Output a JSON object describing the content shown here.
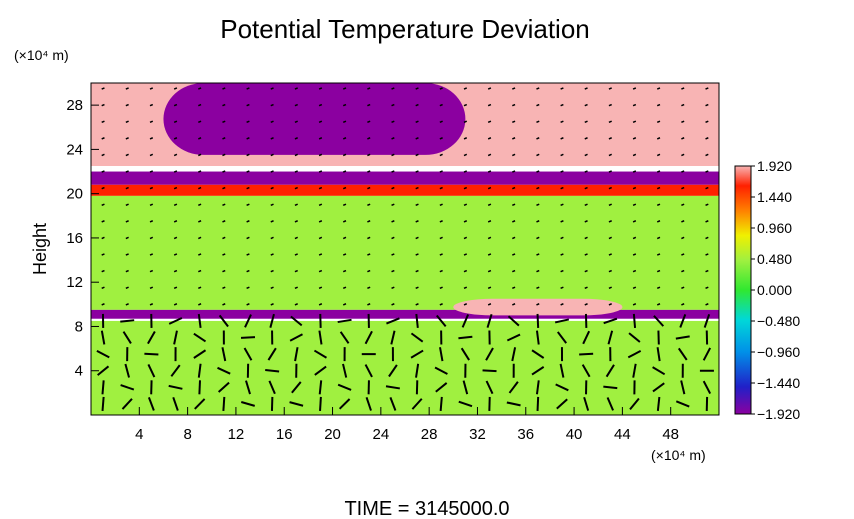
{
  "chart_data": {
    "type": "heatmap",
    "title": "Potential Temperature Deviation",
    "ylabel": "Height",
    "y_unit": "(×10⁴ m)",
    "x_unit": "(×10⁴ m)",
    "footer": "TIME = 3145000.0",
    "xlim": [
      0,
      52
    ],
    "ylim": [
      0,
      30
    ],
    "xticks": [
      4,
      8,
      12,
      16,
      20,
      24,
      28,
      32,
      36,
      40,
      44,
      48
    ],
    "xtick_labels": [
      "4",
      "8",
      "12",
      "16",
      "20",
      "24",
      "28",
      "32",
      "36",
      "40",
      "44",
      "48"
    ],
    "yticks": [
      4,
      8,
      12,
      16,
      20,
      24,
      28
    ],
    "ytick_labels": [
      "4",
      "8",
      "12",
      "16",
      "20",
      "24",
      "28"
    ],
    "colorbar": {
      "range": [
        -1.92,
        1.92
      ],
      "ticks": [
        1.92,
        1.44,
        0.96,
        0.48,
        0.0,
        -0.48,
        -0.96,
        -1.44,
        -1.92
      ],
      "tick_labels": [
        "1.920",
        "1.440",
        "0.960",
        "0.480",
        "0.000",
        "−0.480",
        "−0.960",
        "−1.440",
        "−1.920"
      ],
      "colors": [
        "#8b00a0",
        "#2020c8",
        "#0090e8",
        "#00d8d8",
        "#30e830",
        "#a0f040",
        "#f0f000",
        "#ff8000",
        "#ff2000",
        "#f8b4b4"
      ]
    },
    "field_layers": [
      {
        "name": "upper warm layer",
        "y": [
          22.5,
          30
        ],
        "value": 1.92
      },
      {
        "name": "upper cold core",
        "x": [
          6,
          31
        ],
        "y": [
          23.5,
          30
        ],
        "value": -1.92
      },
      {
        "name": "mid cold band",
        "y": [
          20.8,
          22
        ],
        "value": -1.92
      },
      {
        "name": "tropopause warm band",
        "y": [
          19.8,
          20.8
        ],
        "value": 1.2
      },
      {
        "name": "neutral mid layer",
        "y": [
          9.5,
          19.8
        ],
        "value": 0.1
      },
      {
        "name": "cold sheet",
        "y": [
          8.7,
          9.5
        ],
        "value": -1.6
      },
      {
        "name": "warm patches",
        "x": [
          30,
          44
        ],
        "y": [
          9,
          10.5
        ],
        "value": 1.92
      },
      {
        "name": "boundary layer",
        "y": [
          0,
          8.5
        ],
        "value": 0.3
      }
    ],
    "vectors": "wind arrows overlaid; strong circulation below 9×10⁴ m"
  }
}
